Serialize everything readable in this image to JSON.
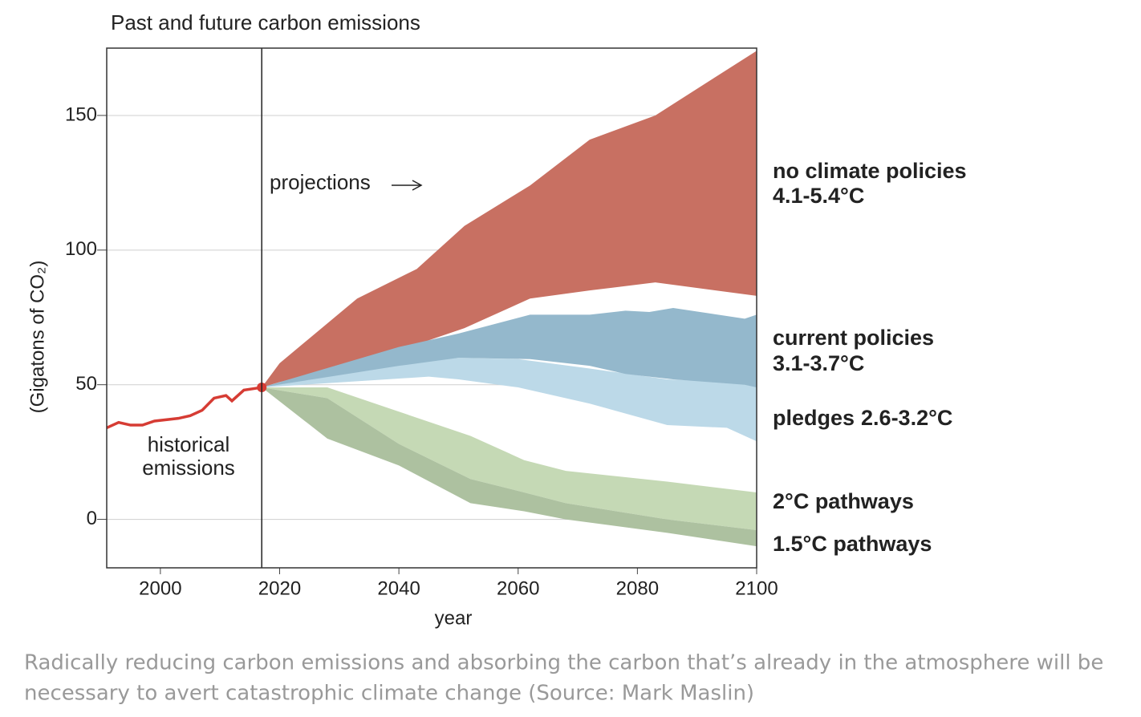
{
  "chart_data": {
    "type": "band",
    "title": "Past and future carbon emissions",
    "xlabel": "year",
    "ylabel": "(Gigatons of CO₂)",
    "xlim": [
      1991,
      2100
    ],
    "ylim": [
      -18,
      175
    ],
    "xticks": [
      2000,
      2020,
      2040,
      2060,
      2080,
      2100
    ],
    "yticks": [
      0,
      50,
      100,
      150
    ],
    "grid": true,
    "projection_start": 2017,
    "annotations": {
      "projections": "projections",
      "historical": [
        "historical",
        "emissions"
      ]
    },
    "historical": {
      "color": "#d63c34",
      "x": [
        1991,
        1993,
        1995,
        1997,
        1999,
        2003,
        2005,
        2007,
        2009,
        2011,
        2012,
        2014,
        2017
      ],
      "values": [
        34,
        36,
        35,
        35,
        36.5,
        37.5,
        38.5,
        40.5,
        45,
        46,
        44,
        48,
        49
      ]
    },
    "series": [
      {
        "name": "no climate policies",
        "range": "4.1-5.4°C",
        "color": "#c87062",
        "x": [
          2017,
          2020,
          2033,
          2043,
          2051,
          2062,
          2072,
          2083,
          2100
        ],
        "upper": [
          49,
          58,
          82,
          93,
          109,
          124,
          141,
          150,
          174
        ],
        "lower": [
          49,
          51,
          58,
          65,
          71,
          82,
          85,
          88,
          83
        ]
      },
      {
        "name": "current policies",
        "range": "3.1-3.7°C",
        "color": "#94b8cc",
        "x": [
          2017,
          2040,
          2050,
          2062,
          2072,
          2078,
          2082,
          2086,
          2098,
          2100
        ],
        "upper": [
          49,
          64,
          69,
          76,
          76,
          77.5,
          77,
          78.5,
          74.5,
          76
        ],
        "lower": [
          49,
          57,
          60,
          59.5,
          57,
          54,
          53,
          52,
          50,
          49
        ]
      },
      {
        "name": "pledges",
        "range": "2.6-3.2°C",
        "color": "#bcd9e8",
        "x": [
          2017,
          2045,
          2050,
          2060,
          2072,
          2085,
          2095,
          2100
        ],
        "upper": [
          49,
          59,
          60,
          59.5,
          56,
          52,
          51,
          50
        ],
        "lower": [
          49,
          53,
          52,
          49,
          43,
          35,
          34,
          29
        ]
      },
      {
        "name": "2°C pathways",
        "color": "#c5d9b5",
        "x": [
          2017,
          2028,
          2040,
          2052,
          2061,
          2068,
          2085,
          2100
        ],
        "upper": [
          49,
          49,
          40,
          31,
          22,
          18,
          14,
          10
        ],
        "lower": [
          49,
          45,
          28,
          15,
          10,
          6,
          0,
          -4
        ]
      },
      {
        "name": "1.5°C pathways",
        "color": "#adc1a0",
        "x": [
          2017,
          2028,
          2040,
          2052,
          2061,
          2068,
          2085,
          2100
        ],
        "upper": [
          49,
          45,
          28,
          15,
          10,
          6,
          0,
          -4
        ],
        "lower": [
          49,
          30,
          20,
          6,
          3,
          0,
          -5,
          -10
        ]
      }
    ]
  },
  "caption": [
    "Radically reducing carbon emissions and absorbing the carbon that’s already in the atmosphere will be",
    "necessary to avert catastrophic climate change (Source: Mark Maslin)"
  ]
}
